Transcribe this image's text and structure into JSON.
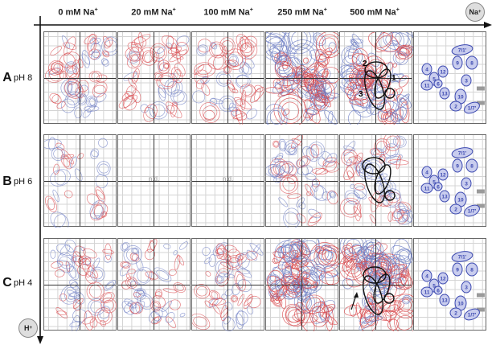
{
  "columns": [
    {
      "conc": "0 mM Na",
      "sup": "+"
    },
    {
      "conc": "20 mM Na",
      "sup": "+"
    },
    {
      "conc": "100 mM Na",
      "sup": "+"
    },
    {
      "conc": "250 mM Na",
      "sup": "+"
    },
    {
      "conc": "500 mM Na",
      "sup": "+"
    }
  ],
  "rows": [
    {
      "letter": "A",
      "ph": "pH 8"
    },
    {
      "letter": "B",
      "ph": "pH 6"
    },
    {
      "letter": "C",
      "ph": "pH 4"
    }
  ],
  "axis_x": {
    "label": "Na",
    "sup": "+"
  },
  "axis_y": {
    "label": "H",
    "sup": "+"
  },
  "not_determined": "n.d.",
  "region_labels": [
    "1",
    "2",
    "3"
  ],
  "model_labels": [
    "7/1'",
    "9",
    "8",
    "4",
    "12",
    "5",
    "6",
    "3",
    "11",
    "13",
    "10",
    "2",
    "1/7'"
  ],
  "colors": {
    "positive": "#d8464a",
    "negative": "#6f7fc4",
    "model_fill": "#c9cdee",
    "model_stroke": "#3b48b0"
  }
}
